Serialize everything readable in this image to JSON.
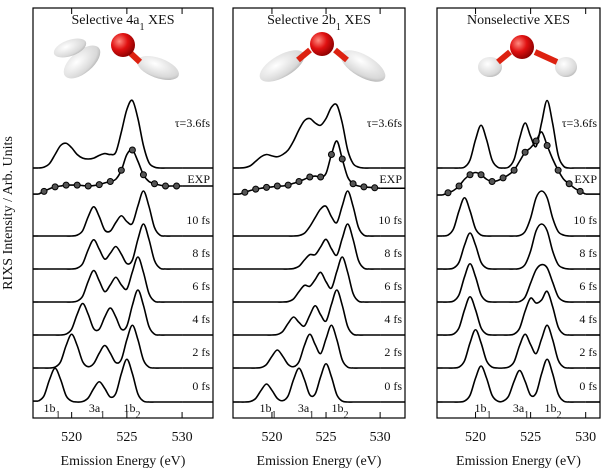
{
  "chart_data": [
    {
      "type": "line",
      "title": {
        "pre": "Selective 4a",
        "sub": "1",
        "post": " XES"
      },
      "xlabel": "Emission Energy (eV)",
      "ylabel": "RIXS Intensity / Arb. Units",
      "xlim": [
        516.5,
        532.8
      ],
      "xticks": [
        520,
        525,
        530
      ],
      "color": "#000000",
      "x": [
        517,
        517.5,
        518,
        518.5,
        519,
        519.5,
        520,
        520.5,
        521,
        521.5,
        522,
        522.5,
        523,
        523.5,
        524,
        524.5,
        525,
        525.5,
        526,
        526.5,
        527,
        527.5,
        528,
        528.5,
        529,
        529.5,
        530
      ],
      "series": [
        {
          "name": "τ=3.6fs",
          "values": [
            0,
            0.02,
            0.1,
            0.3,
            0.5,
            0.55,
            0.45,
            0.3,
            0.22,
            0.2,
            0.22,
            0.28,
            0.32,
            0.3,
            0.35,
            0.8,
            1.3,
            1.5,
            1.1,
            0.5,
            0.12,
            0.02,
            0,
            0,
            0,
            0,
            0
          ]
        },
        {
          "name": "EXP",
          "marker": "circle",
          "values": [
            0.02,
            0.08,
            0.14,
            0.18,
            0.2,
            0.22,
            0.22,
            0.22,
            0.21,
            0.2,
            0.21,
            0.23,
            0.27,
            0.3,
            0.35,
            0.55,
            0.9,
            1,
            0.75,
            0.45,
            0.3,
            0.25,
            0.22,
            0.2,
            0.2,
            0.2,
            0.2
          ]
        },
        {
          "name": "10 fs",
          "values": [
            0,
            0,
            0,
            0,
            0,
            0,
            0,
            0.02,
            0.12,
            0.43,
            0.65,
            0.43,
            0.13,
            0.11,
            0.3,
            0.45,
            0.32,
            0.28,
            0.67,
            1,
            0.66,
            0.19,
            0.02,
            0,
            0,
            0,
            0
          ]
        },
        {
          "name": "8 fs",
          "values": [
            0,
            0,
            0,
            0,
            0,
            0,
            0,
            0.02,
            0.12,
            0.43,
            0.65,
            0.44,
            0.22,
            0.35,
            0.5,
            0.33,
            0.12,
            0.2,
            0.66,
            1,
            0.66,
            0.19,
            0.02,
            0,
            0,
            0,
            0
          ]
        },
        {
          "name": "6 fs",
          "values": [
            0,
            0,
            0,
            0,
            0,
            0,
            0,
            0.02,
            0.13,
            0.46,
            0.7,
            0.47,
            0.23,
            0.38,
            0.55,
            0.38,
            0.29,
            0.67,
            1,
            0.66,
            0.19,
            0.02,
            0,
            0,
            0,
            0,
            0
          ]
        },
        {
          "name": "4 fs",
          "values": [
            0,
            0,
            0,
            0,
            0,
            0.02,
            0.13,
            0.46,
            0.7,
            0.46,
            0.14,
            0.13,
            0.4,
            0.6,
            0.4,
            0.13,
            0.2,
            0.66,
            1,
            0.66,
            0.19,
            0.02,
            0,
            0,
            0,
            0,
            0
          ]
        },
        {
          "name": "2 fs",
          "values": [
            0,
            0,
            0,
            0.02,
            0.14,
            0.5,
            0.75,
            0.5,
            0.14,
            0.03,
            0.1,
            0.33,
            0.5,
            0.33,
            0.12,
            0.19,
            0.63,
            0.95,
            0.63,
            0.18,
            0.02,
            0,
            0,
            0,
            0,
            0,
            0
          ]
        },
        {
          "name": "0 fs",
          "values": [
            0.02,
            0.14,
            0.5,
            0.75,
            0.5,
            0.14,
            0.02,
            0,
            0.01,
            0.09,
            0.3,
            0.45,
            0.3,
            0.11,
            0.19,
            0.63,
            0.95,
            0.63,
            0.18,
            0.02,
            0,
            0,
            0,
            0,
            0,
            0,
            0
          ]
        }
      ],
      "peak_labels": [
        {
          "pre": "1b",
          "sub": "1"
        },
        {
          "pre": "3a",
          "sub": "1"
        },
        {
          "pre": "1b",
          "sub": "2"
        }
      ]
    },
    {
      "type": "line",
      "title": {
        "pre": "Selective 2b",
        "sub": "1",
        "post": " XES"
      },
      "xlabel": "Emission Energy (eV)",
      "xlim": [
        516.4,
        532.3
      ],
      "xticks": [
        520,
        525,
        530
      ],
      "color": "#000000",
      "x": [
        517,
        517.5,
        518,
        518.5,
        519,
        519.5,
        520,
        520.5,
        521,
        521.5,
        522,
        522.5,
        523,
        523.5,
        524,
        524.5,
        525,
        525.5,
        526,
        526.5,
        527,
        527.5,
        528,
        528.5,
        529,
        529.5,
        530
      ],
      "series": [
        {
          "name": "τ=3.6fs",
          "values": [
            0,
            0.01,
            0.05,
            0.15,
            0.25,
            0.3,
            0.27,
            0.25,
            0.3,
            0.4,
            0.6,
            0.85,
            1.05,
            1.1,
            1,
            0.95,
            1.1,
            1.35,
            1.4,
            1,
            0.4,
            0.1,
            0.02,
            0,
            0,
            0,
            0
          ]
        },
        {
          "name": "EXP",
          "marker": "circle",
          "values": [
            0.02,
            0.06,
            0.1,
            0.13,
            0.15,
            0.17,
            0.18,
            0.2,
            0.2,
            0.22,
            0.26,
            0.3,
            0.35,
            0.4,
            0.42,
            0.4,
            0.48,
            0.9,
            1.2,
            0.8,
            0.4,
            0.25,
            0.2,
            0.18,
            0.17,
            0.16,
            0.15
          ]
        },
        {
          "name": "10 fs",
          "values": [
            0,
            0,
            0,
            0,
            0,
            0,
            0,
            0,
            0,
            0,
            0,
            0.01,
            0.06,
            0.21,
            0.41,
            0.6,
            0.66,
            0.43,
            0.3,
            0.67,
            1,
            0.66,
            0.19,
            0.02,
            0,
            0,
            0
          ]
        },
        {
          "name": "8 fs",
          "values": [
            0,
            0,
            0,
            0,
            0,
            0,
            0,
            0,
            0,
            0,
            0.01,
            0.06,
            0.2,
            0.32,
            0.32,
            0.49,
            0.66,
            0.45,
            0.31,
            0.68,
            1,
            0.66,
            0.19,
            0.02,
            0,
            0,
            0
          ]
        },
        {
          "name": "6 fs",
          "values": [
            0,
            0,
            0,
            0,
            0,
            0,
            0,
            0,
            0,
            0.01,
            0.07,
            0.23,
            0.37,
            0.35,
            0.5,
            0.66,
            0.45,
            0.31,
            0.68,
            1,
            0.66,
            0.19,
            0.02,
            0,
            0,
            0,
            0
          ]
        },
        {
          "name": "4 fs",
          "values": [
            0,
            0,
            0,
            0,
            0,
            0,
            0,
            0.01,
            0.08,
            0.26,
            0.4,
            0.28,
            0.2,
            0.44,
            0.65,
            0.45,
            0.31,
            0.68,
            1,
            0.66,
            0.19,
            0.02,
            0,
            0,
            0,
            0,
            0
          ]
        },
        {
          "name": "2 fs",
          "values": [
            0,
            0,
            0,
            0,
            0.01,
            0.08,
            0.26,
            0.4,
            0.26,
            0.08,
            0.03,
            0.14,
            0.5,
            0.75,
            0.52,
            0.32,
            0.65,
            0.95,
            0.63,
            0.18,
            0.02,
            0,
            0,
            0,
            0,
            0,
            0
          ]
        },
        {
          "name": "0 fs",
          "values": [
            0,
            0,
            0.01,
            0.08,
            0.26,
            0.4,
            0.26,
            0.08,
            0.03,
            0.14,
            0.5,
            0.75,
            0.5,
            0.16,
            0.18,
            0.56,
            0.85,
            0.56,
            0.16,
            0.02,
            0,
            0,
            0,
            0,
            0,
            0,
            0
          ]
        }
      ],
      "peak_labels": [
        {
          "pre": "1b",
          "sub": "1"
        },
        {
          "pre": "3a",
          "sub": "1"
        },
        {
          "pre": "1b",
          "sub": "2"
        }
      ]
    },
    {
      "type": "line",
      "title": {
        "pre": "Nonselective XES"
      },
      "xlabel": "Emission Energy (eV)",
      "xlim": [
        516.5,
        531.3
      ],
      "xticks": [
        520,
        525,
        530
      ],
      "color": "#000000",
      "x": [
        517,
        517.5,
        518,
        518.5,
        519,
        519.5,
        520,
        520.5,
        521,
        521.5,
        522,
        522.5,
        523,
        523.5,
        524,
        524.5,
        525,
        525.5,
        526,
        526.5,
        527,
        527.5,
        528,
        528.5,
        529,
        529.5,
        530
      ],
      "series": [
        {
          "name": "τ=3.6fs",
          "values": [
            0,
            0,
            0,
            0,
            0.02,
            0.18,
            0.63,
            0.95,
            0.63,
            0.18,
            0.02,
            0,
            0.02,
            0.19,
            0.66,
            1,
            0.7,
            0.48,
            1.01,
            1.5,
            0.99,
            0.29,
            0.04,
            0,
            0,
            0,
            0
          ]
        },
        {
          "name": "EXP",
          "marker": "circle",
          "values": [
            0,
            0.05,
            0.1,
            0.2,
            0.35,
            0.45,
            0.5,
            0.45,
            0.35,
            0.3,
            0.32,
            0.38,
            0.45,
            0.55,
            0.75,
            0.95,
            1.05,
            1.2,
            1.4,
            1.1,
            0.8,
            0.55,
            0.35,
            0.25,
            0.15,
            0.08,
            0.02
          ]
        },
        {
          "name": "10 fs",
          "values": [
            0,
            0.02,
            0.16,
            0.56,
            0.85,
            0.56,
            0.16,
            0.02,
            0,
            0,
            0,
            0,
            0,
            0,
            0.01,
            0.1,
            0.4,
            0.85,
            1,
            0.85,
            0.4,
            0.1,
            0.02,
            0,
            0,
            0,
            0
          ]
        },
        {
          "name": "8 fs",
          "values": [
            0,
            0,
            0.02,
            0.15,
            0.53,
            0.8,
            0.53,
            0.15,
            0.02,
            0,
            0,
            0,
            0,
            0,
            0.01,
            0.1,
            0.4,
            0.85,
            1,
            0.85,
            0.4,
            0.1,
            0.02,
            0,
            0,
            0,
            0
          ]
        },
        {
          "name": "6 fs",
          "values": [
            0,
            0,
            0.02,
            0.16,
            0.56,
            0.85,
            0.56,
            0.16,
            0.02,
            0,
            0,
            0,
            0,
            0,
            0.01,
            0.11,
            0.42,
            0.72,
            0.83,
            0.76,
            0.44,
            0.12,
            0.02,
            0,
            0,
            0,
            0
          ]
        },
        {
          "name": "4 fs",
          "values": [
            0,
            0,
            0.02,
            0.16,
            0.56,
            0.85,
            0.56,
            0.16,
            0.02,
            0,
            0,
            0,
            0,
            0.02,
            0.15,
            0.53,
            0.82,
            0.71,
            0.78,
            0.97,
            0.63,
            0.18,
            0.02,
            0,
            0,
            0,
            0
          ]
        },
        {
          "name": "2 fs",
          "values": [
            0,
            0,
            0,
            0.02,
            0.16,
            0.56,
            0.85,
            0.56,
            0.16,
            0.02,
            0,
            0,
            0.02,
            0.14,
            0.5,
            0.75,
            0.52,
            0.32,
            0.65,
            0.95,
            0.63,
            0.18,
            0.02,
            0,
            0,
            0,
            0
          ]
        },
        {
          "name": "0 fs",
          "values": [
            0,
            0,
            0,
            0,
            0.02,
            0.15,
            0.53,
            0.8,
            0.53,
            0.15,
            0.02,
            0.02,
            0.13,
            0.46,
            0.7,
            0.46,
            0.15,
            0.2,
            0.63,
            0.95,
            0.63,
            0.18,
            0.02,
            0,
            0,
            0,
            0
          ]
        }
      ],
      "peak_labels": [
        {
          "pre": "1b",
          "sub": "1"
        },
        {
          "pre": "3a",
          "sub": "1"
        },
        {
          "pre": "1b",
          "sub": "2"
        }
      ]
    }
  ]
}
